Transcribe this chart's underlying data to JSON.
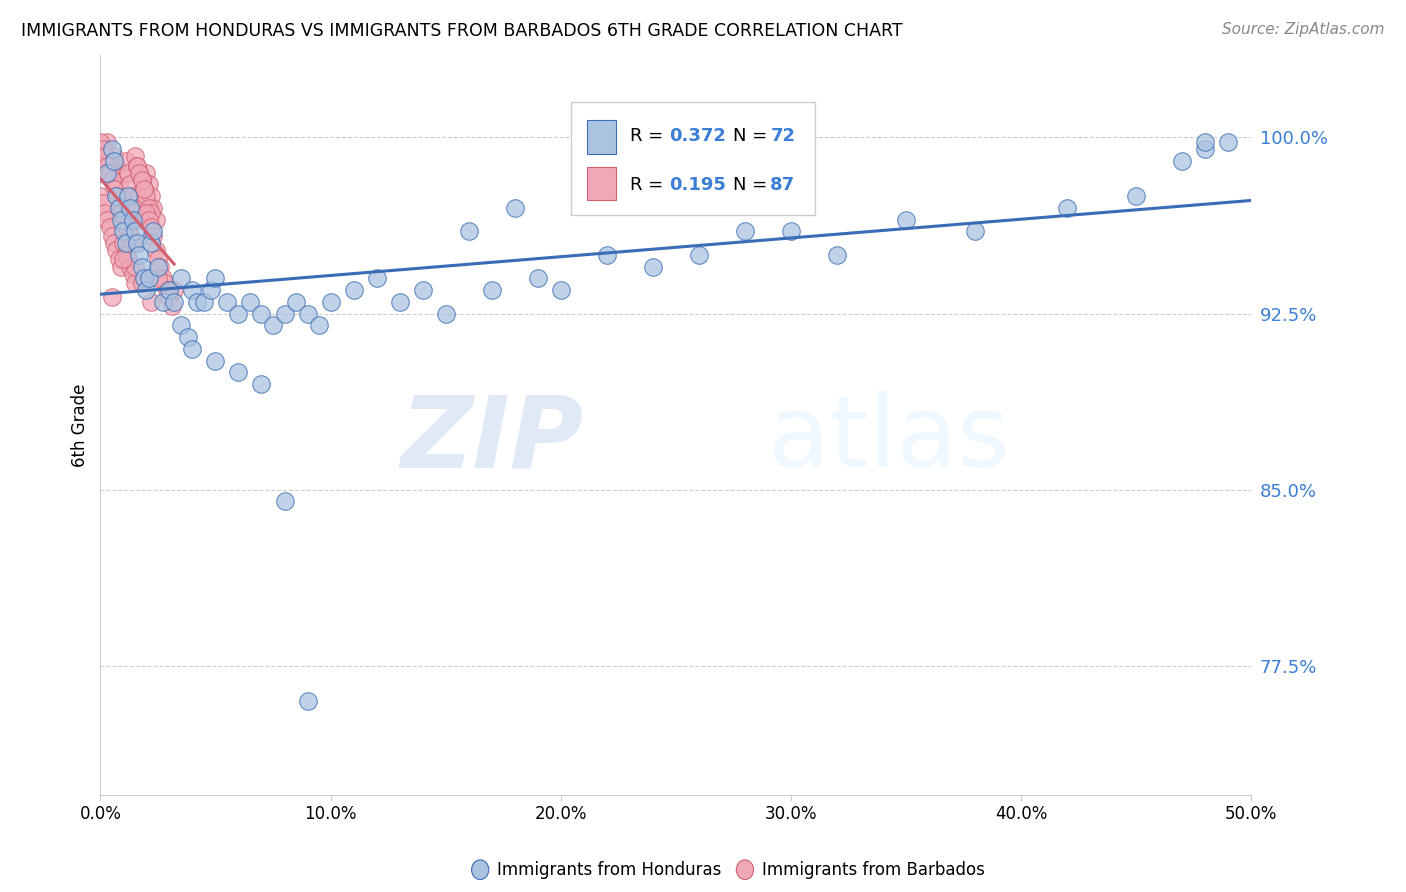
{
  "title": "IMMIGRANTS FROM HONDURAS VS IMMIGRANTS FROM BARBADOS 6TH GRADE CORRELATION CHART",
  "source": "Source: ZipAtlas.com",
  "ylabel": "6th Grade",
  "y_ticks": [
    0.775,
    0.85,
    0.925,
    1.0
  ],
  "y_tick_labels": [
    "77.5%",
    "85.0%",
    "92.5%",
    "100.0%"
  ],
  "xlim": [
    0.0,
    0.5
  ],
  "ylim": [
    0.72,
    1.035
  ],
  "blue_color": "#aac4e0",
  "pink_color": "#f0a8b8",
  "blue_line_color": "#3a6db5",
  "pink_line_color": "#d06070",
  "legend_r_color": "#3a7fd5",
  "watermark_zip": "ZIP",
  "watermark_atlas": "atlas",
  "honduras_x": [
    0.003,
    0.005,
    0.006,
    0.007,
    0.008,
    0.009,
    0.01,
    0.011,
    0.012,
    0.013,
    0.014,
    0.015,
    0.016,
    0.017,
    0.018,
    0.019,
    0.02,
    0.021,
    0.022,
    0.023,
    0.025,
    0.027,
    0.03,
    0.032,
    0.035,
    0.04,
    0.042,
    0.045,
    0.048,
    0.05,
    0.055,
    0.06,
    0.065,
    0.07,
    0.075,
    0.08,
    0.085,
    0.09,
    0.095,
    0.1,
    0.11,
    0.12,
    0.13,
    0.14,
    0.15,
    0.16,
    0.17,
    0.18,
    0.19,
    0.2,
    0.22,
    0.24,
    0.26,
    0.28,
    0.3,
    0.32,
    0.35,
    0.38,
    0.42,
    0.45,
    0.47,
    0.48,
    0.48,
    0.49,
    0.035,
    0.038,
    0.04,
    0.05,
    0.06,
    0.07,
    0.08,
    0.09
  ],
  "honduras_y": [
    0.985,
    0.995,
    0.99,
    0.975,
    0.97,
    0.965,
    0.96,
    0.955,
    0.975,
    0.97,
    0.965,
    0.96,
    0.955,
    0.95,
    0.945,
    0.94,
    0.935,
    0.94,
    0.955,
    0.96,
    0.945,
    0.93,
    0.935,
    0.93,
    0.94,
    0.935,
    0.93,
    0.93,
    0.935,
    0.94,
    0.93,
    0.925,
    0.93,
    0.925,
    0.92,
    0.925,
    0.93,
    0.925,
    0.92,
    0.93,
    0.935,
    0.94,
    0.93,
    0.935,
    0.925,
    0.96,
    0.935,
    0.97,
    0.94,
    0.935,
    0.95,
    0.945,
    0.95,
    0.96,
    0.96,
    0.95,
    0.965,
    0.96,
    0.97,
    0.975,
    0.99,
    0.995,
    0.998,
    0.998,
    0.92,
    0.915,
    0.91,
    0.905,
    0.9,
    0.895,
    0.845,
    0.76
  ],
  "barbados_x": [
    0.0,
    0.001,
    0.002,
    0.003,
    0.004,
    0.005,
    0.006,
    0.007,
    0.008,
    0.009,
    0.01,
    0.011,
    0.012,
    0.013,
    0.014,
    0.015,
    0.016,
    0.017,
    0.018,
    0.019,
    0.02,
    0.021,
    0.022,
    0.023,
    0.024,
    0.0,
    0.001,
    0.002,
    0.003,
    0.004,
    0.005,
    0.006,
    0.007,
    0.008,
    0.009,
    0.01,
    0.011,
    0.012,
    0.013,
    0.014,
    0.015,
    0.016,
    0.017,
    0.018,
    0.019,
    0.02,
    0.021,
    0.022,
    0.0,
    0.001,
    0.002,
    0.003,
    0.004,
    0.005,
    0.006,
    0.007,
    0.008,
    0.009,
    0.01,
    0.011,
    0.012,
    0.013,
    0.014,
    0.015,
    0.016,
    0.017,
    0.018,
    0.019,
    0.02,
    0.021,
    0.022,
    0.023,
    0.024,
    0.025,
    0.026,
    0.027,
    0.028,
    0.029,
    0.03,
    0.031,
    0.032,
    0.025,
    0.015,
    0.01,
    0.005,
    0.018,
    0.022
  ],
  "barbados_y": [
    0.985,
    0.99,
    0.995,
    0.998,
    0.99,
    0.985,
    0.992,
    0.988,
    0.98,
    0.975,
    0.985,
    0.99,
    0.985,
    0.98,
    0.975,
    0.97,
    0.965,
    0.975,
    0.97,
    0.965,
    0.985,
    0.98,
    0.975,
    0.97,
    0.965,
    0.998,
    0.995,
    0.992,
    0.988,
    0.985,
    0.982,
    0.978,
    0.975,
    0.97,
    0.968,
    0.965,
    0.962,
    0.96,
    0.958,
    0.955,
    0.992,
    0.988,
    0.985,
    0.982,
    0.978,
    0.975,
    0.97,
    0.968,
    0.975,
    0.972,
    0.968,
    0.965,
    0.962,
    0.958,
    0.955,
    0.952,
    0.948,
    0.945,
    0.955,
    0.95,
    0.948,
    0.945,
    0.942,
    0.938,
    0.988,
    0.985,
    0.982,
    0.978,
    0.968,
    0.965,
    0.962,
    0.958,
    0.952,
    0.948,
    0.945,
    0.94,
    0.938,
    0.935,
    0.932,
    0.928,
    0.935,
    0.94,
    0.945,
    0.948,
    0.932,
    0.938,
    0.93
  ]
}
